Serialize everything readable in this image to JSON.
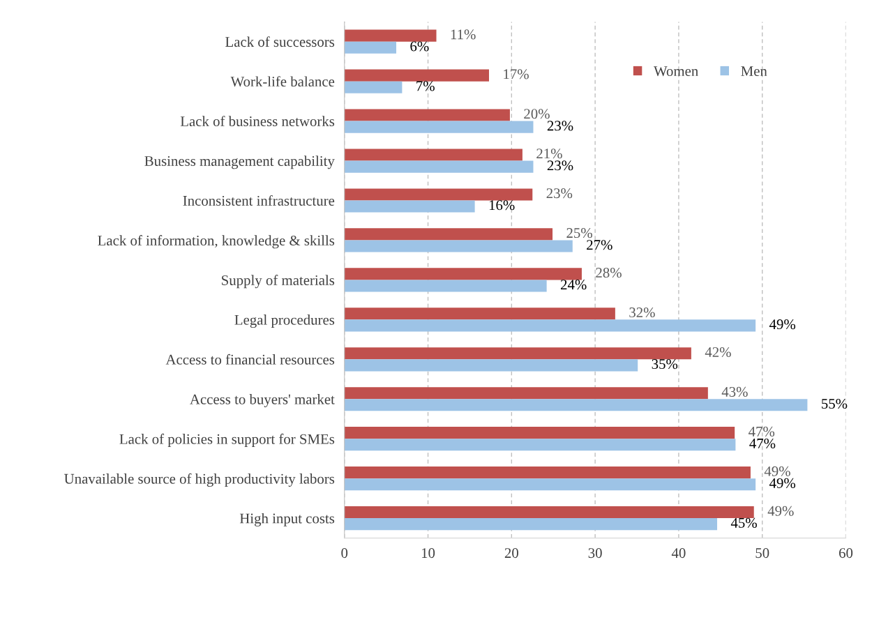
{
  "chart_data": {
    "type": "bar",
    "orientation": "horizontal",
    "categories": [
      "Lack of successors",
      "Work-life balance",
      "Lack of business networks",
      "Business management capability",
      "Inconsistent infrastructure",
      "Lack of information, knowledge & skills",
      "Supply of materials",
      "Legal procedures",
      "Access to financial resources",
      "Access to buyers' market",
      "Lack of policies in support for SMEs",
      "Unavailable source of high productivity labors",
      "High input costs"
    ],
    "series": [
      {
        "name": "Women",
        "color": "#c0504d",
        "values": [
          11.0,
          17.3,
          19.8,
          21.3,
          22.5,
          24.9,
          28.4,
          32.4,
          41.5,
          43.5,
          46.7,
          48.6,
          49.0
        ],
        "value_labels": [
          "11%",
          "17%",
          "20%",
          "21%",
          "23%",
          "25%",
          "28%",
          "32%",
          "42%",
          "43%",
          "47%",
          "49%",
          "49%"
        ]
      },
      {
        "name": "Men",
        "color": "#9dc3e6",
        "values": [
          6.2,
          6.9,
          22.6,
          22.6,
          15.6,
          27.3,
          24.2,
          49.2,
          35.1,
          55.4,
          46.8,
          49.2,
          44.6
        ],
        "value_labels": [
          "6%",
          "7%",
          "23%",
          "23%",
          "16%",
          "27%",
          "24%",
          "49%",
          "35%",
          "55%",
          "47%",
          "49%",
          "45%"
        ]
      }
    ],
    "xlim": [
      0,
      60
    ],
    "xticks": [
      0,
      10,
      20,
      30,
      40,
      50,
      60
    ],
    "grid": "x",
    "legend": "top right"
  }
}
